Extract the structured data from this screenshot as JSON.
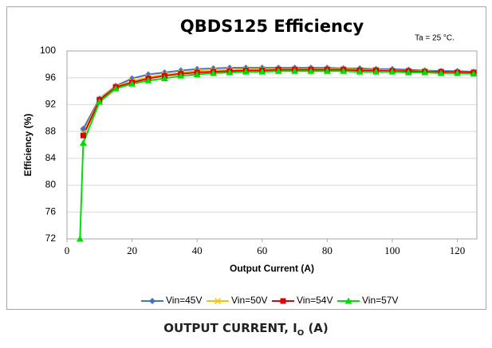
{
  "chart_data": {
    "type": "line",
    "title": "QBDS125 Efficiency",
    "annotation": "Ta = 25 °C.",
    "xlabel": "Output Current (A)",
    "ylabel": "Efficiency (%)",
    "caption": [
      "OUTPUT CURRENT, I",
      "O",
      " (A)"
    ],
    "x": [
      4,
      5,
      10,
      15,
      20,
      25,
      30,
      35,
      40,
      45,
      50,
      55,
      60,
      65,
      70,
      75,
      80,
      85,
      90,
      95,
      100,
      105,
      110,
      115,
      120,
      125
    ],
    "series": [
      {
        "name": "Vin=45V",
        "color": "#4472c4",
        "marker": "diamond",
        "values": [
          null,
          88.4,
          92.9,
          94.8,
          95.9,
          96.5,
          96.8,
          97.1,
          97.3,
          97.4,
          97.5,
          97.5,
          97.5,
          97.5,
          97.5,
          97.5,
          97.5,
          97.4,
          97.4,
          97.3,
          97.3,
          97.2,
          97.1,
          97.0,
          97.0,
          96.9
        ]
      },
      {
        "name": "Vin=50V",
        "color": "#ffc000",
        "marker": "x",
        "values": [
          null,
          87.8,
          92.8,
          94.7,
          95.5,
          96.1,
          96.5,
          96.8,
          97.0,
          97.1,
          97.2,
          97.3,
          97.3,
          97.3,
          97.3,
          97.3,
          97.3,
          97.3,
          97.2,
          97.2,
          97.1,
          97.0,
          97.0,
          96.9,
          96.8,
          96.8
        ]
      },
      {
        "name": "Vin=54V",
        "color": "#e00000",
        "marker": "square",
        "values": [
          null,
          87.4,
          92.7,
          94.6,
          95.3,
          95.9,
          96.3,
          96.6,
          96.8,
          96.9,
          97.0,
          97.1,
          97.1,
          97.2,
          97.2,
          97.2,
          97.2,
          97.2,
          97.1,
          97.1,
          97.0,
          97.0,
          96.9,
          96.9,
          96.8,
          96.8
        ]
      },
      {
        "name": "Vin=57V",
        "color": "#00e000",
        "marker": "triangle",
        "values": [
          72,
          86.3,
          92.4,
          94.4,
          95.1,
          95.6,
          95.9,
          96.3,
          96.5,
          96.7,
          96.8,
          96.9,
          96.9,
          97.0,
          97.0,
          97.0,
          97.0,
          97.0,
          96.9,
          96.9,
          96.9,
          96.8,
          96.8,
          96.7,
          96.7,
          96.6
        ]
      }
    ],
    "xlim": [
      0,
      126
    ],
    "xticks": [
      0,
      20,
      40,
      60,
      80,
      100,
      120
    ],
    "ylim": [
      72,
      100
    ],
    "yticks": [
      72,
      76,
      80,
      84,
      88,
      92,
      96,
      100
    ],
    "grid": true,
    "legend": "bottom"
  }
}
